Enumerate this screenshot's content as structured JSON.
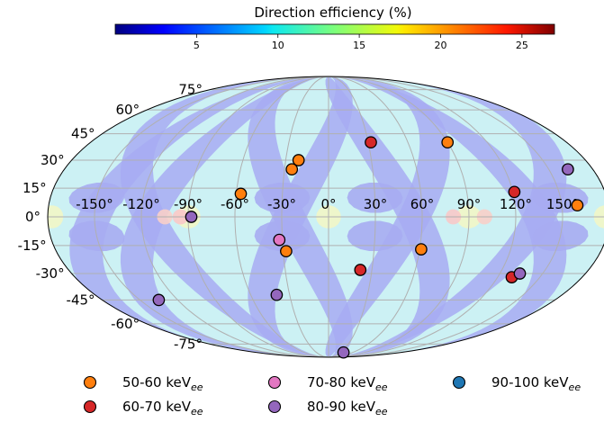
{
  "chart_data": {
    "type": "scatter",
    "projection": "mollweide",
    "colorbar": {
      "title": "Direction efficiency (%)",
      "ticks": [
        "5",
        "10",
        "15",
        "20",
        "25"
      ],
      "tick_values": [
        5,
        10,
        15,
        20,
        25
      ],
      "range": [
        0,
        27
      ],
      "colormap": "jet"
    },
    "longitude_labels": [
      "-150°",
      "-120°",
      "-90°",
      "-60°",
      "-30°",
      "0°",
      "30°",
      "60°",
      "90°",
      "120°",
      "150°"
    ],
    "longitude_values": [
      -150,
      -120,
      -90,
      -60,
      -30,
      0,
      30,
      60,
      90,
      120,
      150
    ],
    "latitude_labels": [
      "75°",
      "60°",
      "45°",
      "30°",
      "15°",
      "0°",
      "-15°",
      "-30°",
      "-45°",
      "-60°",
      "-75°"
    ],
    "latitude_values": [
      75,
      60,
      45,
      30,
      15,
      0,
      -15,
      -30,
      -45,
      -60,
      -75
    ],
    "grid": true,
    "series": [
      {
        "name": "50-60 keV",
        "subscript": "ee",
        "color": "#ff7f0e",
        "points": [
          [
            -21,
            30
          ],
          [
            -25,
            25
          ],
          [
            -57,
            12
          ],
          [
            90,
            40
          ],
          [
            -28,
            -18
          ],
          [
            61,
            -17
          ],
          [
            160,
            6
          ]
        ]
      },
      {
        "name": "60-70 keV",
        "subscript": "ee",
        "color": "#d62728",
        "points": [
          [
            32,
            40
          ],
          [
            121,
            13
          ],
          [
            22,
            -28
          ],
          [
            130,
            -32
          ]
        ]
      },
      {
        "name": "70-80 keV",
        "subscript": "ee",
        "color": "#e377c2",
        "points": [
          [
            -32,
            -12
          ]
        ]
      },
      {
        "name": "80-90 keV",
        "subscript": "ee",
        "color": "#9467bd",
        "points": [
          [
            -88,
            0
          ],
          [
            -40,
            -42
          ],
          [
            -135,
            -45
          ],
          [
            163,
            25
          ],
          [
            134,
            -30
          ],
          [
            37,
            -83
          ]
        ]
      },
      {
        "name": "90-100 keV",
        "subscript": "ee",
        "color": "#1f77b4",
        "points": []
      }
    ],
    "legend_placement": "bottom"
  }
}
